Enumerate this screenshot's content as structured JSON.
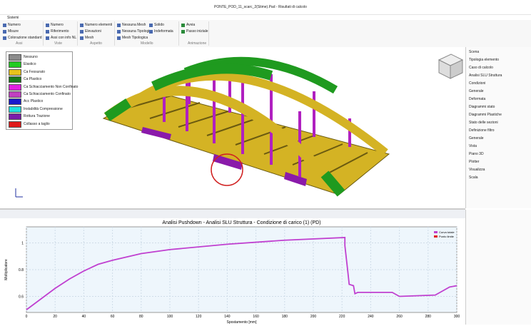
{
  "window": {
    "title": "PONTE_POD_11_scarc_2(Stime).Pad - Risultati di calcolo",
    "menu": "Sistemi"
  },
  "ribbon": [
    {
      "label": "Assi",
      "items": [
        "Numero",
        "Misure",
        "Colorazione standard"
      ]
    },
    {
      "label": "Viste",
      "items": [
        "Numero",
        "Riferimento",
        "Assi con info NL"
      ]
    },
    {
      "label": "Aspetto",
      "items": [
        "Numero elementi",
        "Elevazioni",
        "Mesh"
      ]
    },
    {
      "label": "Modello",
      "items": [
        "Nessuna Mesh",
        "Nessuna Tipologia",
        "Mesh Tipologica",
        "Solido",
        "Indeformata"
      ]
    },
    {
      "label": "Animazione",
      "items": [
        "Avvia",
        "Passo iniziale"
      ]
    }
  ],
  "legend": [
    {
      "label": "Nessuno",
      "color": "#8c8c8c"
    },
    {
      "label": "Elastico",
      "color": "#22cc22"
    },
    {
      "label": "Ca Fessurato",
      "color": "#e8c21c"
    },
    {
      "label": "Ca Plastico",
      "color": "#1a7a1a"
    },
    {
      "label": "Ca Schiacciamento Non Confinato",
      "color": "#e020e0"
    },
    {
      "label": "Ca Schiacciamento Confinato",
      "color": "#c040c0"
    },
    {
      "label": "Acc Plastico",
      "color": "#1a1acc"
    },
    {
      "label": "Instabilità Compressione",
      "color": "#20e0e0"
    },
    {
      "label": "Rottura Trazione",
      "color": "#7a1aaa"
    },
    {
      "label": "Collasso a taglio",
      "color": "#e01a1a"
    }
  ],
  "panel": {
    "items": [
      "Scena",
      "Tipologia elemento",
      "Caso di calcolo",
      "Analisi SLU Struttura",
      "Condizioni",
      "Generale",
      "Deformata",
      "Diagrammi stato",
      "Diagrammi Plastiche",
      "Stato delle sezioni",
      "Definizione filtro",
      "Generale",
      "Vista",
      "Piano 3D",
      "Plotter",
      "Visualizza",
      "Scala"
    ]
  },
  "chart": {
    "title": "Analisi Pushdown - Analisi SLU Struttura - Condizione di carico (1) (PD)",
    "xlabel": "Spostamento [mm]",
    "ylabel": "Moltiplicatore",
    "xlim": [
      0,
      300
    ],
    "ylim": [
      0.48,
      1.12
    ],
    "xticks": [
      0,
      20,
      40,
      60,
      80,
      100,
      120,
      140,
      160,
      180,
      200,
      220,
      240,
      260,
      280,
      300
    ],
    "yticks": [
      0.6,
      0.8,
      1
    ],
    "series": [
      {
        "name": "Curva totale",
        "color": "#c040d0",
        "x": [
          0,
          10,
          20,
          30,
          40,
          50,
          60,
          80,
          100,
          140,
          180,
          222,
          222,
          224,
          225,
          228,
          229,
          231,
          255,
          260,
          285,
          290,
          295,
          300
        ],
        "values": [
          0.5,
          0.58,
          0.66,
          0.73,
          0.79,
          0.84,
          0.87,
          0.92,
          0.95,
          0.99,
          1.02,
          1.04,
          0.98,
          0.79,
          0.69,
          0.68,
          0.62,
          0.63,
          0.63,
          0.6,
          0.61,
          0.64,
          0.67,
          0.68
        ]
      },
      {
        "name": "Punto limite",
        "color": "#e01a1a",
        "x": [],
        "values": []
      }
    ]
  }
}
